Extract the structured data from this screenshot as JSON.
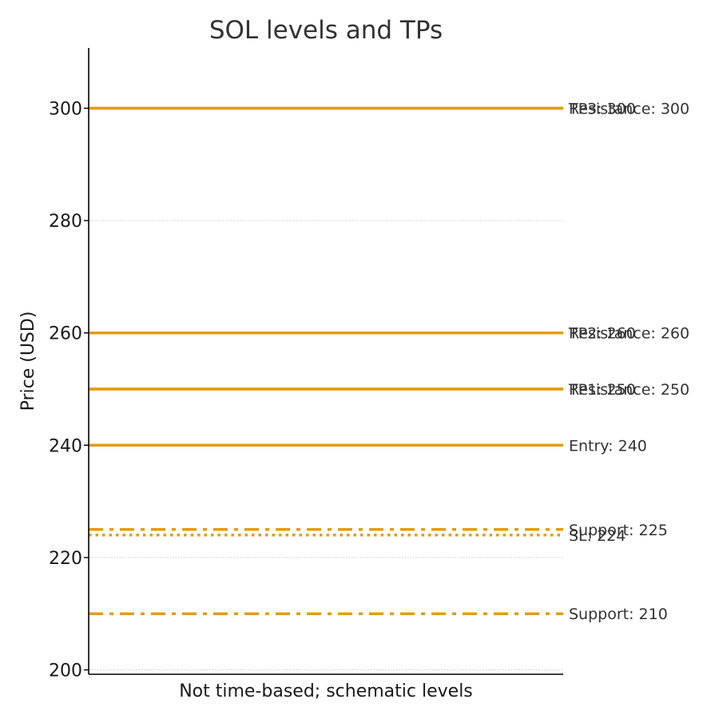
{
  "chart_data": {
    "type": "line",
    "title": "SOL levels and TPs",
    "xlabel": "Not time-based; schematic levels",
    "ylabel": "Price (USD)",
    "ylim": [
      199.5,
      311
    ],
    "yticks": [
      200,
      220,
      240,
      260,
      280,
      300
    ],
    "grid": "horizontal dotted",
    "color": "#e59c11",
    "levels": [
      {
        "label": "Resistance: 250",
        "value": 250,
        "style": "solid"
      },
      {
        "label": "Resistance: 260",
        "value": 260,
        "style": "solid"
      },
      {
        "label": "Resistance: 300",
        "value": 300,
        "style": "solid"
      },
      {
        "label": "Support: 225",
        "value": 225,
        "style": "dashdot"
      },
      {
        "label": "Support: 210",
        "value": 210,
        "style": "dashdot"
      },
      {
        "label": "Entry: 240",
        "value": 240,
        "style": "solid"
      },
      {
        "label": "SL: 224",
        "value": 224,
        "style": "dotted"
      },
      {
        "label": "TP1: 250",
        "value": 250,
        "style": "solid"
      },
      {
        "label": "TP2: 260",
        "value": 260,
        "style": "solid"
      },
      {
        "label": "TP3: 300",
        "value": 300,
        "style": "solid"
      }
    ]
  }
}
